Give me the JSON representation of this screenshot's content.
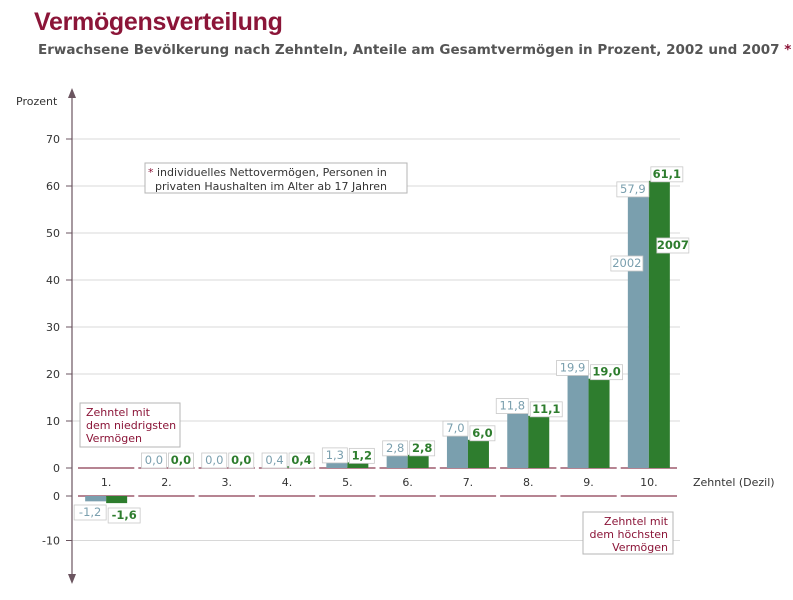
{
  "title": "Vermögensverteilung",
  "subtitle": "Erwachsene Bevölkerung nach Zehnteln, Anteile am Gesamtvermögen in Prozent, 2002 und 2007",
  "subtitle_marker": "*",
  "footnote": {
    "marker": "*",
    "line1": "individuelles Nettovermögen, Personen in",
    "line2": "privaten Haushalten im Alter ab 17 Jahren"
  },
  "lowest_note": [
    "Zehntel mit",
    "dem niedrigsten",
    "Vermögen"
  ],
  "highest_note": [
    "Zehntel mit",
    "dem höchsten",
    "Vermögen"
  ],
  "colors": {
    "title": "#8b1538",
    "series_2002": "#7a9fae",
    "series_2007": "#2e7d2e",
    "axis": "#6b5560",
    "grid": "#d8d8d8",
    "note_border": "#b5b5b5"
  },
  "chart_data": {
    "type": "bar",
    "title": "Vermögensverteilung",
    "ylabel": "Prozent",
    "xlabel": "Zehntel (Dezil)",
    "ylim": [
      -10,
      70
    ],
    "yticks_upper": [
      0,
      10,
      20,
      30,
      40,
      50,
      60,
      70
    ],
    "yticks_lower": [
      0,
      -10
    ],
    "categories": [
      "1.",
      "2.",
      "3.",
      "4.",
      "5.",
      "6.",
      "7.",
      "8.",
      "9.",
      "10."
    ],
    "series": [
      {
        "name": "2002",
        "values": [
          -1.2,
          0.0,
          0.0,
          0.4,
          1.3,
          2.8,
          7.0,
          11.8,
          19.9,
          57.9
        ],
        "labels": [
          "-1,2",
          "0,0",
          "0,0",
          "0,4",
          "1,3",
          "2,8",
          "7,0",
          "11,8",
          "19,9",
          "57,9"
        ]
      },
      {
        "name": "2007",
        "values": [
          -1.6,
          0.0,
          0.0,
          0.4,
          1.2,
          2.8,
          6.0,
          11.1,
          19.0,
          61.1
        ],
        "labels": [
          "-1,6",
          "0,0",
          "0,0",
          "0,4",
          "1,2",
          "2,8",
          "6,0",
          "11,1",
          "19,0",
          "61,1"
        ]
      }
    ],
    "grid": true
  }
}
